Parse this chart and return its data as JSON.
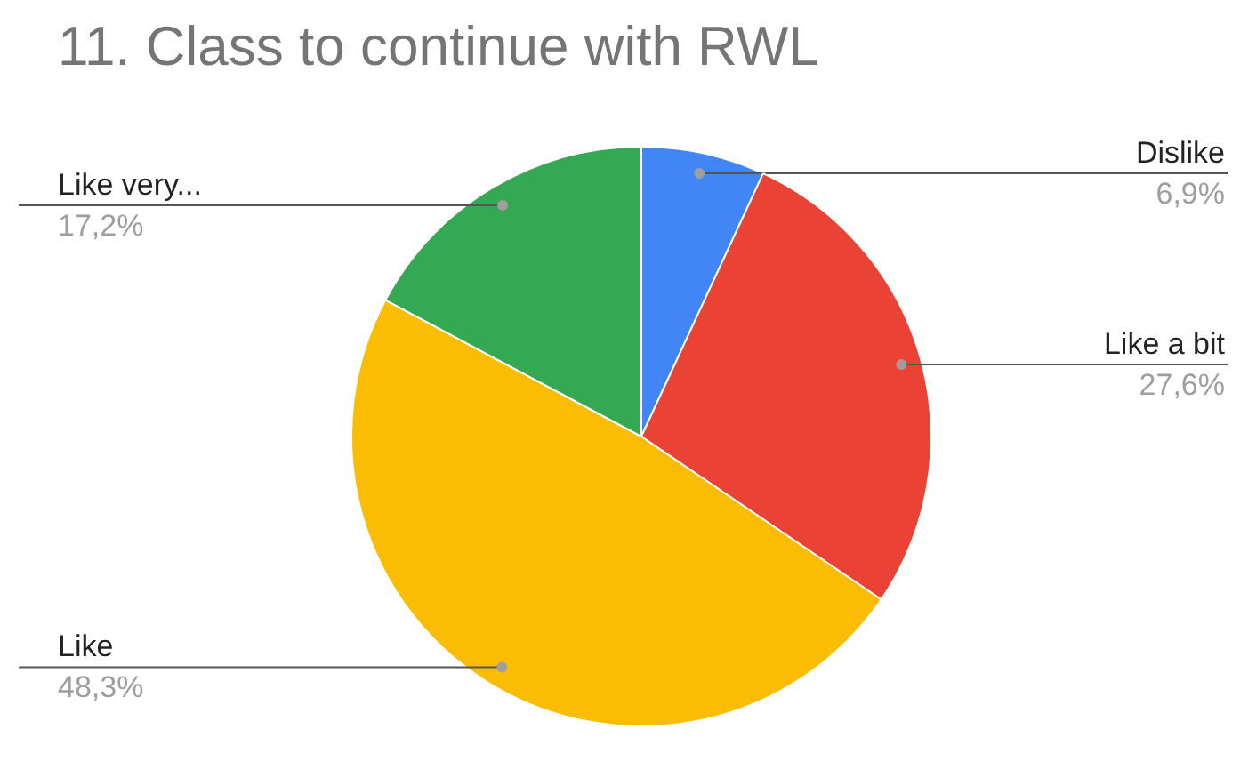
{
  "chart_data": {
    "type": "pie",
    "title": "11. Class to continue with RWL",
    "categories": [
      "Dislike",
      "Like a bit",
      "Like",
      "Like very..."
    ],
    "values": [
      6.9,
      27.6,
      48.3,
      17.2
    ],
    "colors": [
      "#4285f4",
      "#ea4335",
      "#fbbc04",
      "#34a853"
    ],
    "value_labels": [
      "6,9%",
      "27,6%",
      "48,3%",
      "17,2%"
    ]
  }
}
